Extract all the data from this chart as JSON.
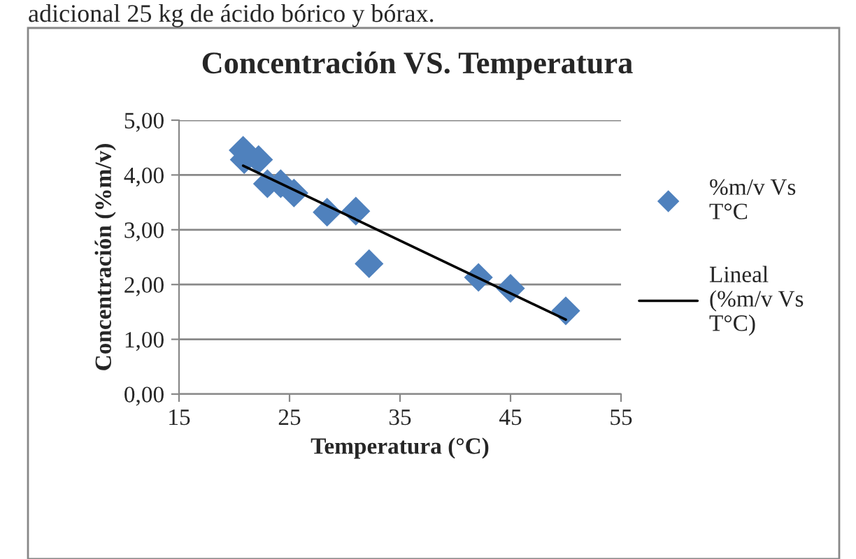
{
  "chart_data": {
    "type": "scatter",
    "title": "Concentración VS. Temperatura",
    "xlabel": "Temperatura (°C)",
    "ylabel": "Concentración (%m/v)",
    "annotations": [
      "adicional 25 kg de ácido bórico y bórax."
    ],
    "series": [
      {
        "name": "%m/v Vs T°C",
        "color": "#4f81bd",
        "marker": "diamond",
        "x": [
          20.8,
          20.9,
          22.2,
          23.0,
          24.2,
          25.4,
          28.4,
          31.0,
          32.2,
          42.1,
          45.0,
          50.0
        ],
        "values": [
          4.45,
          4.28,
          4.28,
          3.84,
          3.84,
          3.67,
          3.32,
          3.34,
          2.38,
          2.13,
          1.93,
          1.52
        ]
      },
      {
        "name": "Lineal (%m/v Vs T°C)",
        "type": "line",
        "color": "#000000",
        "marker": "none",
        "line_style": "solid",
        "x": [
          20.8,
          50.0
        ],
        "values": [
          4.17,
          1.36
        ]
      }
    ],
    "xlim": [
      15,
      55
    ],
    "xticks": [
      15,
      25,
      35,
      45,
      55
    ],
    "ylim": [
      0,
      5
    ],
    "yticks": [
      {
        "value": 0,
        "label": "0,00"
      },
      {
        "value": 1,
        "label": "1,00"
      },
      {
        "value": 2,
        "label": "2,00"
      },
      {
        "value": 3,
        "label": "3,00"
      },
      {
        "value": 4,
        "label": "4,00"
      },
      {
        "value": 5,
        "label": "5,00"
      }
    ],
    "grid": "y",
    "legend": "right"
  }
}
